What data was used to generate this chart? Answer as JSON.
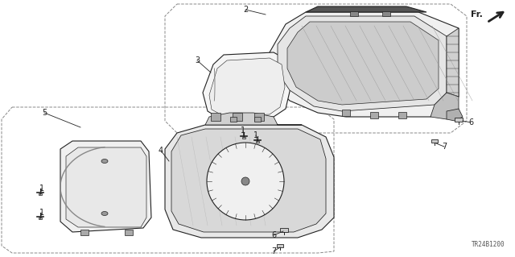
{
  "bg_color": "#ffffff",
  "diagram_code": "TR24B1200",
  "fr_label": "Fr.",
  "line_color": "#222222",
  "dash_color": "#888888",
  "label_fontsize": 7
}
